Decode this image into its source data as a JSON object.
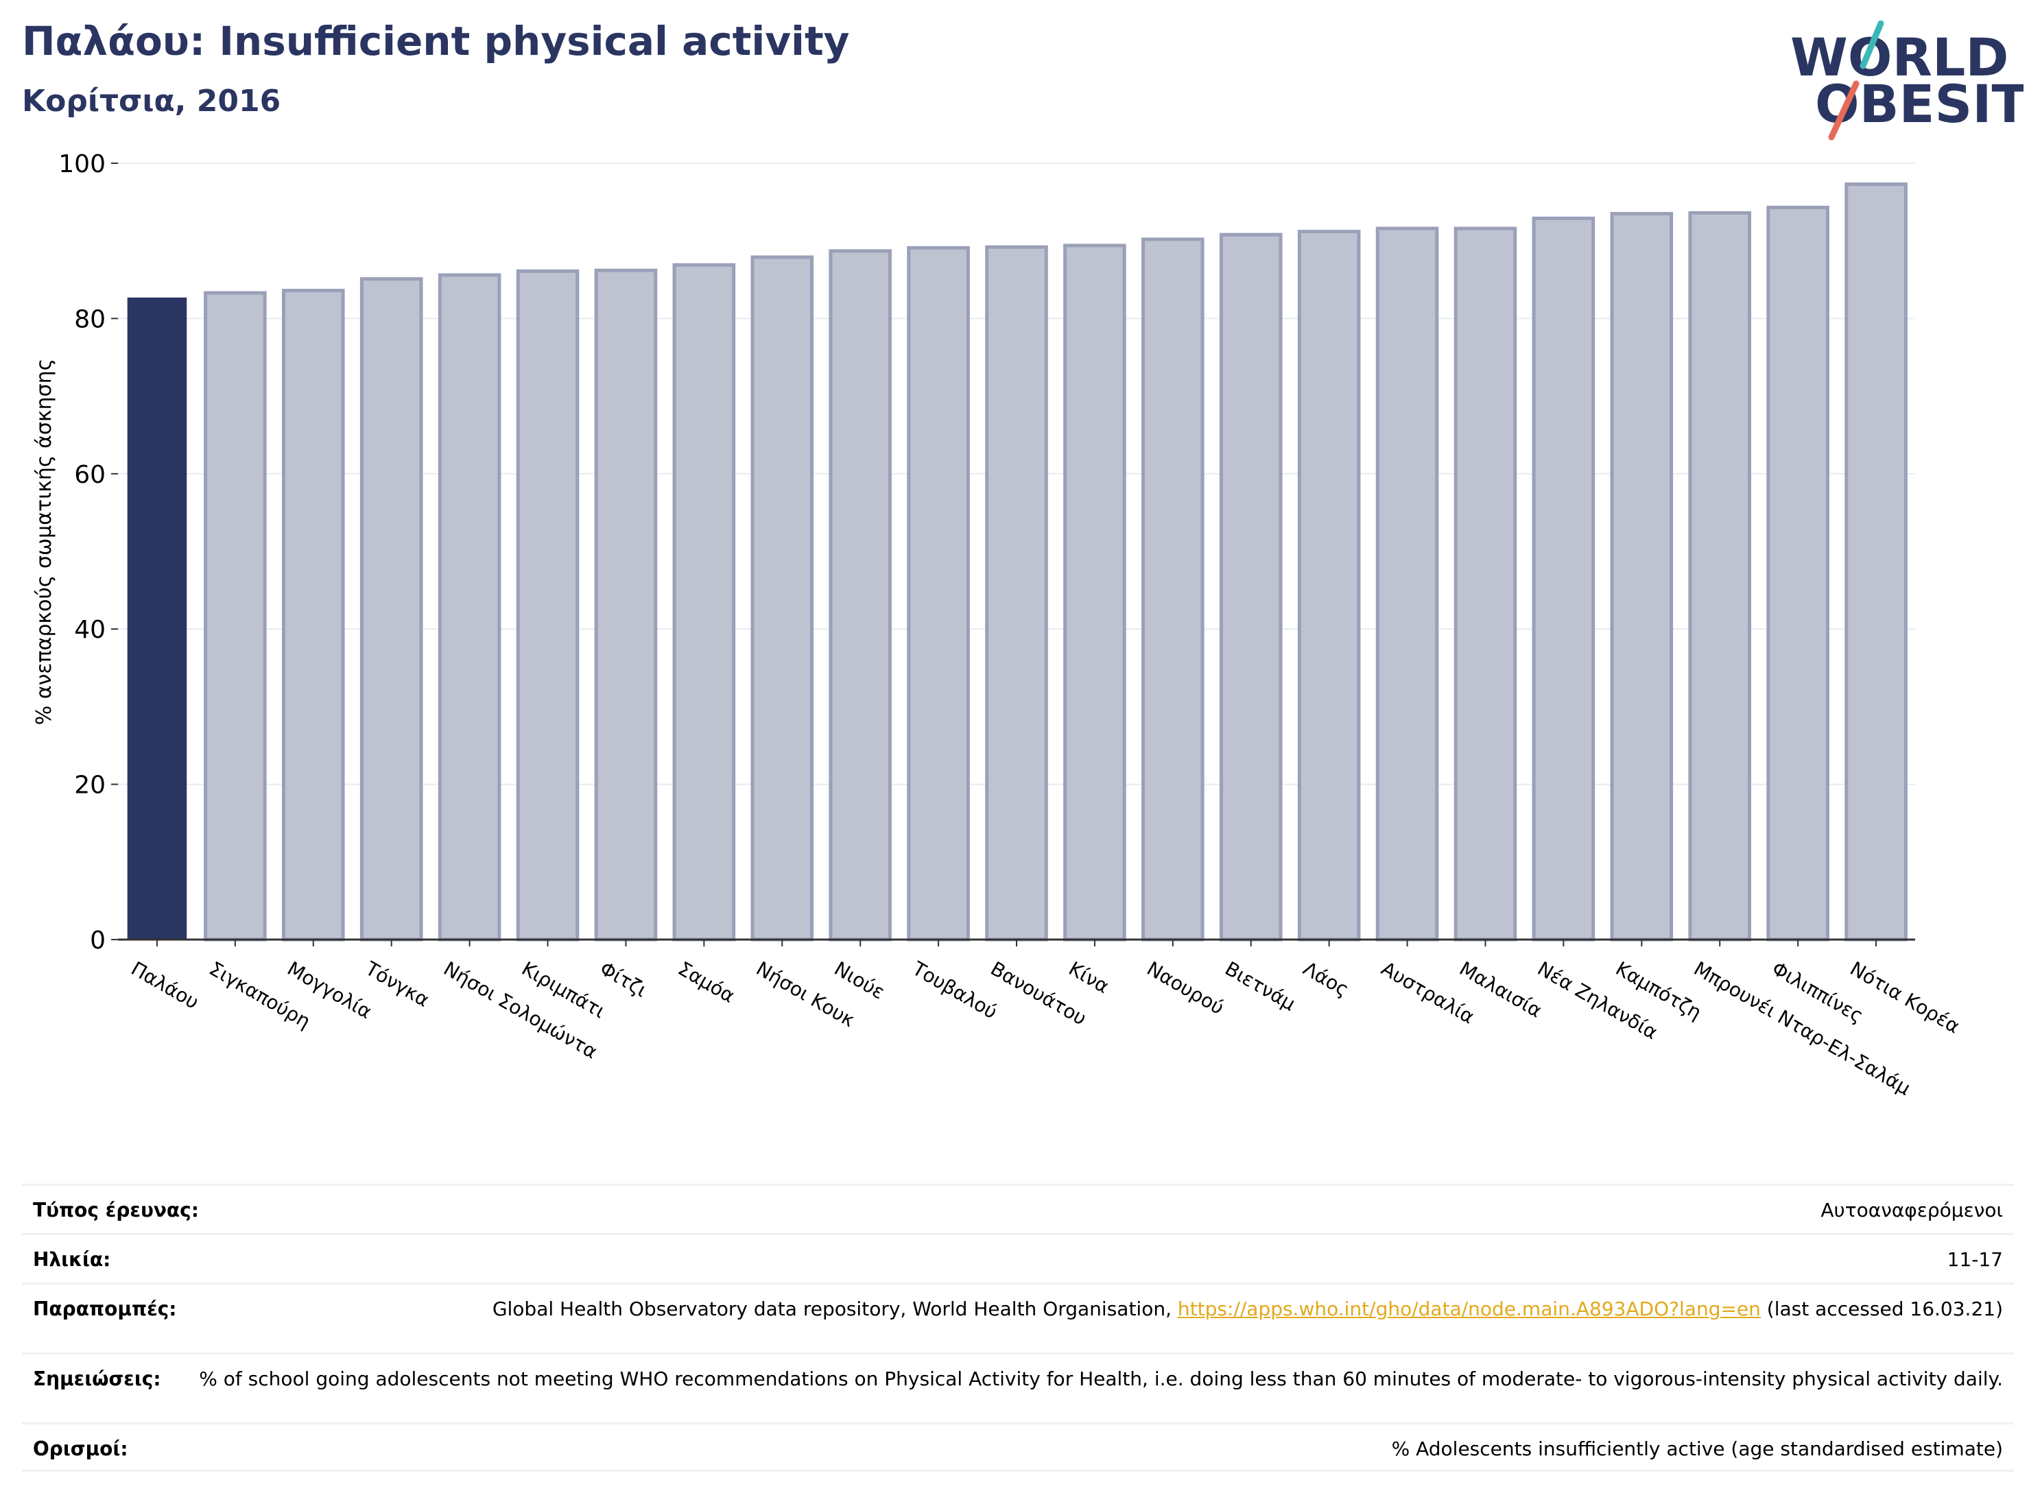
{
  "header": {
    "title": "Παλάου: Insufficient physical activity",
    "subtitle": "Κορίτσια, 2016"
  },
  "logo": {
    "line1": "WORLD",
    "line2": "OBESITY",
    "brand_color": "#2b3561",
    "accent_teal": "#3bb7b8",
    "accent_red": "#e56a58"
  },
  "colors": {
    "highlight_bar": "#2b3561",
    "other_bar_fill": "#bfc2d0",
    "other_bar_stroke": "#9aa0b8"
  },
  "chart_data": {
    "type": "bar",
    "ylabel": "% ανεπαρκούς σωματικής άσκησης",
    "ylim": [
      0,
      100
    ],
    "yticks": [
      0,
      20,
      40,
      60,
      80,
      100
    ],
    "grid": true,
    "highlight": "Παλάου",
    "categories": [
      "Παλάου",
      "Σιγκαπούρη",
      "Μογγολία",
      "Τόνγκα",
      "Νήσοι Σολομώντα",
      "Κιριμπάτι",
      "Φίτζι",
      "Σαμόα",
      "Νήσοι Κουκ",
      "Νιούε",
      "Τουβαλού",
      "Βανουάτου",
      "Κίνα",
      "Ναουρού",
      "Βιετνάμ",
      "Λάος",
      "Αυστραλία",
      "Μαλαισία",
      "Νέα Ζηλανδία",
      "Καμπότζη",
      "Μπρουνέι Νταρ-Ελ-Σαλάμ",
      "Φιλιππίνες",
      "Νότια Κορέα"
    ],
    "values": [
      82.7,
      83.3,
      83.6,
      85.1,
      85.6,
      86.1,
      86.2,
      86.9,
      87.9,
      88.7,
      89.1,
      89.2,
      89.4,
      90.2,
      90.8,
      91.2,
      91.6,
      91.6,
      92.9,
      93.5,
      93.6,
      94.3,
      97.3
    ]
  },
  "meta": [
    {
      "label": "Τύπος έρευνας:",
      "value": "Αυτοαναφερόμενοι"
    },
    {
      "label": "Ηλικία:",
      "value": "11-17"
    },
    {
      "label": "Παραπομπές:",
      "value_prefix": "Global Health Observatory data repository, World Health Organisation, ",
      "link": "https://apps.who.int/gho/data/node.main.A893ADO?lang=en",
      "value_suffix": " (last accessed 16.03.21)"
    },
    {
      "label": "Σημειώσεις:",
      "value": "% of school going adolescents not meeting WHO recommendations on Physical Activity for Health, i.e. doing less than 60 minutes of moderate- to vigorous-intensity physical activity daily."
    },
    {
      "label": "Ορισμοί:",
      "value": "% Adolescents insufficiently active (age standardised estimate)"
    }
  ]
}
